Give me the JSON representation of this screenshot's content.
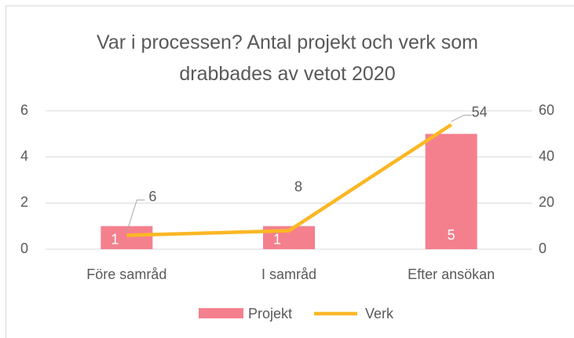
{
  "chart_data": {
    "type": "combo",
    "title": "Var i processen? Antal projekt och verk som drabbades av vetot 2020",
    "categories": [
      "Före samråd",
      "I samråd",
      "Efter ansökan"
    ],
    "series": [
      {
        "name": "Projekt",
        "type": "bar",
        "color": "#f4808e",
        "values": [
          1,
          1,
          5
        ]
      },
      {
        "name": "Verk",
        "type": "line",
        "axis": "y2",
        "color": "#fbb724",
        "values": [
          6,
          8,
          54
        ]
      }
    ],
    "ylim": [
      0,
      6
    ],
    "yticks": [
      0,
      2,
      4,
      6
    ],
    "y2lim": [
      0,
      60
    ],
    "y2ticks": [
      0,
      20,
      40,
      60
    ],
    "grid": true,
    "legend": "bottom"
  }
}
